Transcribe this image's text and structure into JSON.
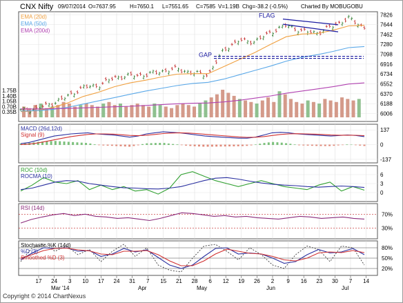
{
  "header": {
    "symbol": "CNX Nifty",
    "date": "09/07/2014",
    "open": "O=7637.95",
    "high": "H=7650.1",
    "low": "L=7551.65",
    "close": "C=7585",
    "volume": "V=1.19B",
    "change": "Chg=-38.2 (-0.5%)",
    "charted_by": "Charted By MOBUGOBU"
  },
  "colors": {
    "ema20": "#f0a040",
    "ema50": "#5aa8e8",
    "ema200": "#b040b0",
    "up": "#2a7a2a",
    "down": "#c02020",
    "volume_bar": "#d49a8a",
    "volume_bar_alt": "#8fc08f",
    "macd": "#2a30a0",
    "signal": "#d03030",
    "roc": "#30a030",
    "rocma": "#2a30a0",
    "rsi": "#8a2a7a",
    "stoch_k": "#2a30a0",
    "stoch_d": "#d03030",
    "flag": "#1a1aa0",
    "gap": "#1a1aa0"
  },
  "chart_data": [
    {
      "type": "line",
      "panel": "price",
      "legend": [
        "EMA (20d)",
        "EMA (50d)",
        "EMA (200d)"
      ],
      "y_ticks": [
        7826,
        7644,
        7462,
        7280,
        7098,
        6916,
        6734,
        6552,
        6370,
        6188,
        6006
      ],
      "ylim": [
        5860,
        7880
      ],
      "annotations": [
        {
          "text": "FLAG",
          "at": "2014-06-03",
          "value": 7760
        },
        {
          "text": "GAP",
          "at": "2014-05-09",
          "value": 7075
        }
      ],
      "gap_level": 7060,
      "flag_top": [
        [
          "2014-06-09",
          7740
        ],
        [
          "2014-06-26",
          7630
        ]
      ],
      "flag_bottom": [
        [
          "2014-06-05",
          7640
        ],
        [
          "2014-06-26",
          7500
        ]
      ],
      "series": [
        {
          "name": "Close",
          "x": [
            "2014-02-10",
            "2014-02-17",
            "2014-02-24",
            "2014-03-03",
            "2014-03-10",
            "2014-03-17",
            "2014-03-24",
            "2014-03-31",
            "2014-04-07",
            "2014-04-14",
            "2014-04-21",
            "2014-04-28",
            "2014-05-05",
            "2014-05-12",
            "2014-05-19",
            "2014-05-26",
            "2014-06-02",
            "2014-06-09",
            "2014-06-16",
            "2014-06-23",
            "2014-06-30",
            "2014-07-07",
            "2014-07-09"
          ],
          "values": [
            6060,
            6090,
            6190,
            6320,
            6490,
            6520,
            6670,
            6700,
            6720,
            6780,
            6830,
            6750,
            6720,
            7180,
            7350,
            7330,
            7500,
            7630,
            7520,
            7490,
            7620,
            7760,
            7585
          ]
        },
        {
          "name": "EMA (20d)",
          "values": [
            6040,
            6060,
            6110,
            6200,
            6320,
            6400,
            6500,
            6570,
            6620,
            6680,
            6730,
            6740,
            6740,
            6870,
            7000,
            7130,
            7280,
            7420,
            7470,
            7480,
            7540,
            7620,
            7630
          ]
        },
        {
          "name": "EMA (50d)",
          "values": [
            6050,
            6060,
            6080,
            6120,
            6180,
            6240,
            6300,
            6360,
            6420,
            6470,
            6520,
            6560,
            6580,
            6640,
            6720,
            6800,
            6880,
            6970,
            7040,
            7090,
            7150,
            7220,
            7240
          ]
        },
        {
          "name": "EMA (200d)",
          "values": [
            6090,
            6090,
            6095,
            6100,
            6110,
            6120,
            6130,
            6140,
            6155,
            6170,
            6185,
            6195,
            6200,
            6220,
            6250,
            6290,
            6330,
            6380,
            6420,
            6460,
            6500,
            6550,
            6570
          ]
        }
      ]
    },
    {
      "type": "bar",
      "panel": "volume",
      "y_ticks": [
        "1.75B",
        "1.40B",
        "1.05B",
        "0.70B",
        "0.35B"
      ],
      "ylim": [
        0,
        2.0
      ],
      "values": [
        0.7,
        0.6,
        0.8,
        0.9,
        0.6,
        0.7,
        0.8,
        1.0,
        0.9,
        0.7,
        0.8,
        0.9,
        0.8,
        0.7,
        0.9,
        1.0,
        0.8,
        0.9,
        0.7,
        0.8,
        0.9,
        0.8,
        0.7,
        0.9,
        0.8,
        0.7,
        0.6,
        0.8,
        0.9,
        0.8,
        0.7,
        0.9,
        1.1,
        1.3,
        1.5,
        1.8,
        1.6,
        1.4,
        1.2,
        1.1,
        1.0,
        0.9,
        1.1,
        1.3,
        1.0,
        1.7,
        1.5,
        1.2,
        1.0,
        0.9,
        1.1,
        1.0,
        0.9,
        1.2,
        1.1,
        1.0,
        1.3,
        1.2,
        1.1,
        1.2
      ]
    },
    {
      "type": "line",
      "panel": "macd",
      "legend": [
        "MACD (26d,12d)",
        "Signal (9)"
      ],
      "y_ticks": [
        137,
        0,
        -137
      ],
      "ylim": [
        -170,
        190
      ],
      "series": [
        {
          "name": "MACD (26d,12d)",
          "values": [
            10,
            20,
            40,
            60,
            80,
            90,
            100,
            105,
            110,
            100,
            95,
            90,
            80,
            70,
            80,
            100,
            110,
            120,
            115,
            110,
            100,
            90,
            80,
            75,
            70,
            65,
            60,
            60,
            70,
            90,
            110,
            115,
            110,
            100,
            95,
            90,
            85,
            80,
            85,
            90,
            85,
            75
          ]
        },
        {
          "name": "Signal (9)",
          "values": [
            0,
            5,
            15,
            30,
            45,
            60,
            75,
            85,
            95,
            100,
            100,
            98,
            92,
            86,
            83,
            88,
            95,
            103,
            108,
            110,
            108,
            103,
            96,
            90,
            84,
            78,
            72,
            68,
            69,
            75,
            85,
            95,
            100,
            102,
            100,
            98,
            95,
            90,
            88,
            88,
            87,
            84
          ]
        }
      ]
    },
    {
      "type": "line",
      "panel": "roc",
      "legend": [
        "ROC (10d)",
        "ROCMA (10)"
      ],
      "y_ticks": [
        6,
        3,
        0
      ],
      "ylim": [
        -3,
        9
      ],
      "series": [
        {
          "name": "ROC (10d)",
          "values": [
            0.5,
            2.5,
            5.0,
            3.5,
            3.0,
            4.0,
            1.0,
            2.5,
            1.0,
            2.0,
            0.5,
            1.0,
            -0.5,
            1.5,
            6.0,
            7.0,
            5.5,
            4.0,
            3.0,
            2.0,
            3.0,
            4.0,
            3.0,
            2.0,
            1.5,
            1.0,
            2.5,
            3.5,
            0.5,
            2.0,
            0.8
          ]
        },
        {
          "name": "ROCMA (10)",
          "values": [
            1.0,
            1.5,
            2.5,
            3.5,
            4.0,
            3.8,
            3.0,
            2.5,
            2.0,
            1.6,
            1.5,
            1.3,
            1.2,
            1.5,
            2.0,
            3.0,
            4.0,
            4.8,
            5.0,
            4.5,
            3.8,
            3.2,
            2.8,
            2.5,
            2.3,
            2.0,
            1.8,
            2.0,
            2.2,
            2.0,
            1.7
          ]
        }
      ]
    },
    {
      "type": "line",
      "panel": "rsi",
      "legend": [
        "RSI (14d)"
      ],
      "y_ticks": [
        "70%",
        "30%"
      ],
      "ylim": [
        0,
        100
      ],
      "series": [
        {
          "name": "RSI (14d)",
          "values": [
            45,
            55,
            62,
            68,
            72,
            66,
            70,
            64,
            62,
            58,
            60,
            56,
            52,
            58,
            66,
            74,
            72,
            68,
            64,
            66,
            62,
            64,
            60,
            58,
            56,
            60,
            64,
            62,
            58,
            60,
            62,
            58,
            56
          ]
        }
      ]
    },
    {
      "type": "line",
      "panel": "stochastic",
      "legend": [
        "Stochastic %K (14d)",
        "%D (3)",
        "Smoothed %D (3)"
      ],
      "y_ticks": [
        "80%",
        "50%",
        "20%"
      ],
      "ylim": [
        0,
        100
      ],
      "series": [
        {
          "name": "%K (14d)",
          "values": [
            40,
            80,
            90,
            70,
            85,
            60,
            75,
            40,
            70,
            90,
            55,
            80,
            30,
            15,
            10,
            50,
            85,
            90,
            70,
            45,
            80,
            60,
            30,
            20,
            60,
            85,
            75,
            40,
            85,
            80,
            30
          ]
        },
        {
          "name": "%D (3)",
          "values": [
            45,
            65,
            80,
            78,
            80,
            70,
            72,
            55,
            62,
            78,
            68,
            74,
            52,
            30,
            20,
            30,
            55,
            78,
            80,
            62,
            65,
            62,
            50,
            35,
            40,
            60,
            75,
            65,
            68,
            78,
            60
          ]
        },
        {
          "name": "Smoothed %D (3)",
          "values": [
            50,
            60,
            72,
            78,
            79,
            74,
            71,
            62,
            60,
            70,
            70,
            72,
            60,
            42,
            28,
            28,
            42,
            62,
            76,
            70,
            64,
            62,
            55,
            45,
            42,
            50,
            65,
            68,
            66,
            72,
            66
          ]
        }
      ]
    },
    {
      "type": "axis",
      "panel": "x-axis",
      "tick_labels": [
        "17",
        "24",
        "3",
        "10",
        "17",
        "24",
        "31",
        "7",
        "15",
        "21",
        "28",
        "6",
        "12",
        "19",
        "26",
        "2",
        "9",
        "16",
        "23",
        "30",
        "7",
        "14"
      ],
      "month_labels": [
        "Mar '14",
        "Apr",
        "May",
        "Jun",
        "Jul"
      ]
    }
  ],
  "footer": {
    "copyright": "Copyright © 2014 ChartNexus"
  }
}
